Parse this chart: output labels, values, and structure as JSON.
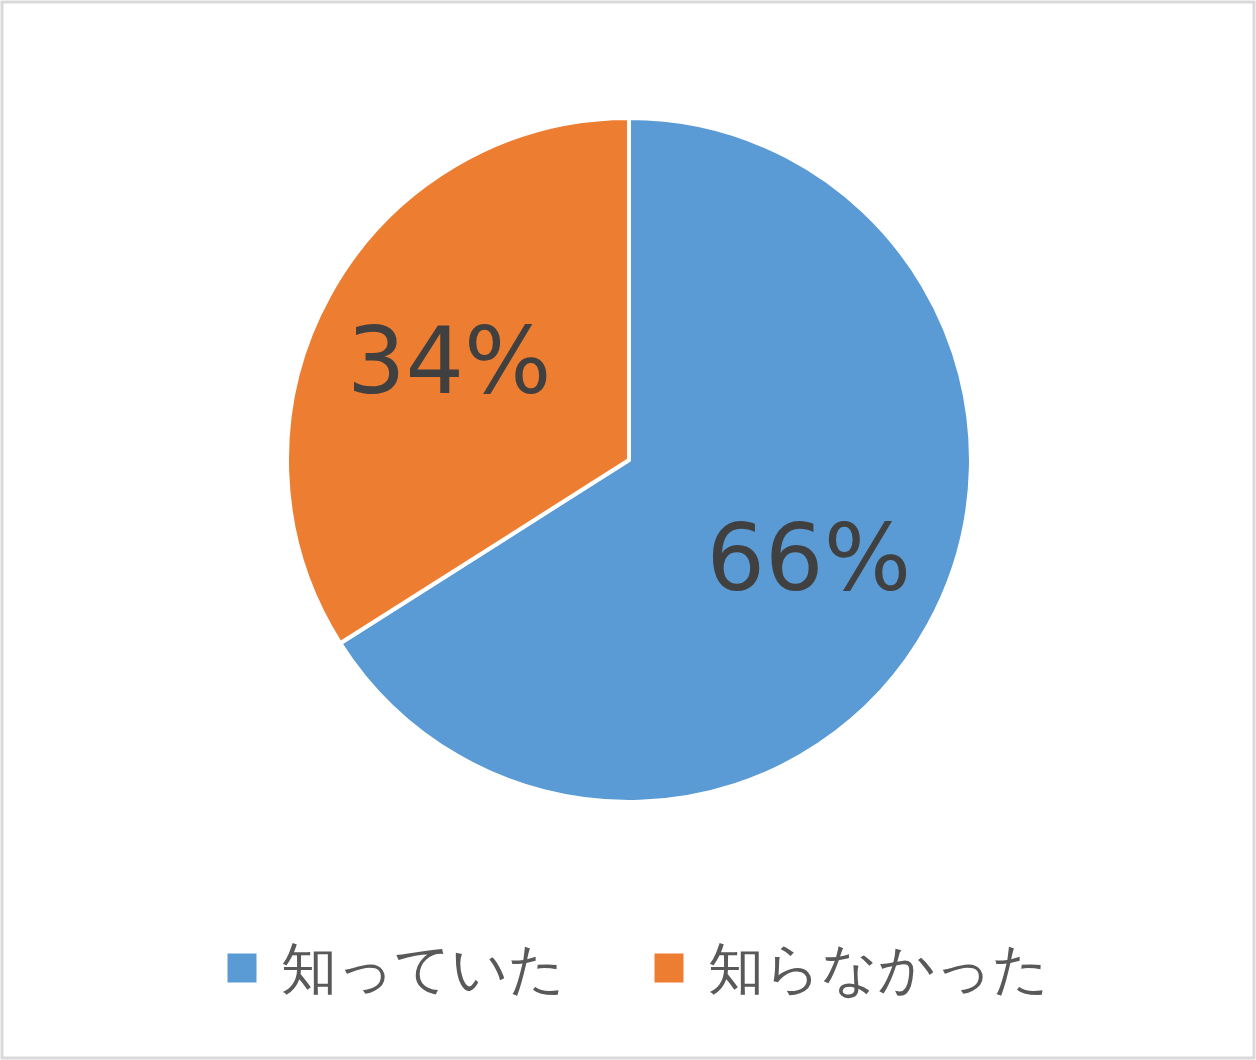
{
  "chart_data": {
    "type": "pie",
    "categories": [
      "知っていた",
      "知らなかった"
    ],
    "values": [
      66,
      34
    ],
    "colors": [
      "#5b9bd5",
      "#ed7d31"
    ],
    "value_labels": [
      "66%",
      "34%"
    ],
    "legend": "bottom"
  }
}
